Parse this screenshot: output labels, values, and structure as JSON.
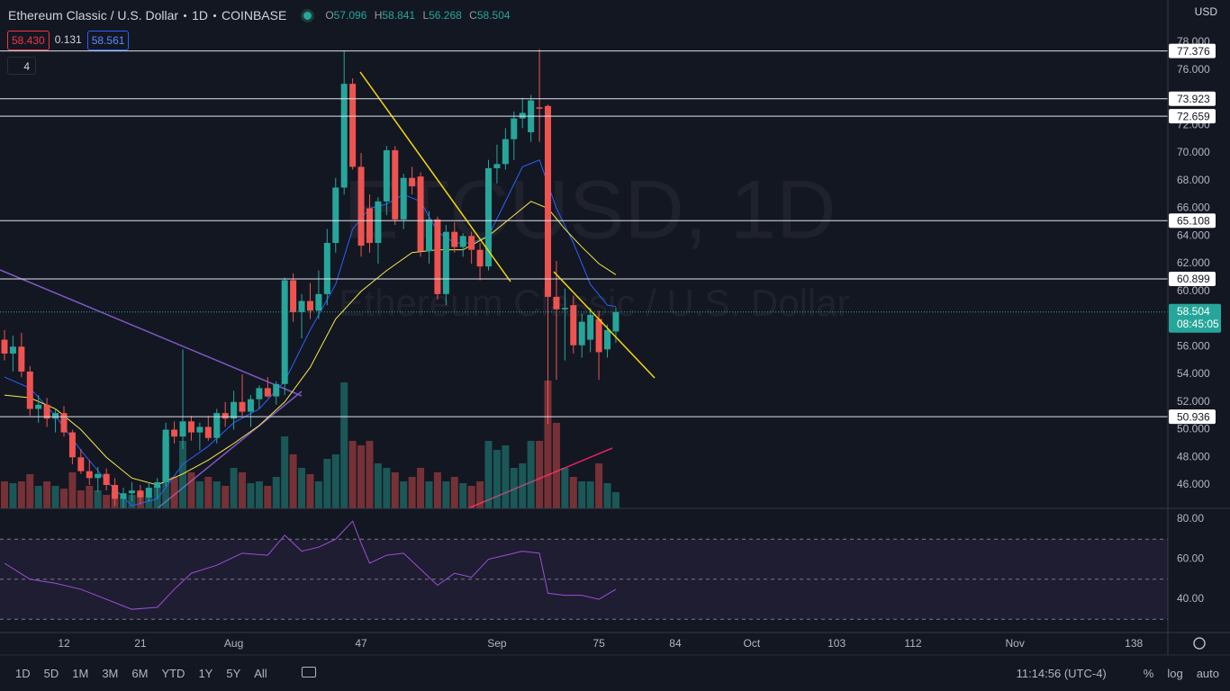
{
  "header": {
    "symbol": "Ethereum Classic / U.S. Dollar",
    "interval": "1D",
    "exchange": "COINBASE",
    "currency": "USD",
    "ohlc_keys": [
      "O",
      "H",
      "L",
      "C"
    ],
    "bid": "58.430",
    "spread": "0.131",
    "ask": "58.561",
    "indicator_count": "4"
  },
  "watermark": {
    "line1": "ETCUSD, 1D",
    "line2": "Ethereum Classic / U.S. Dollar"
  },
  "countdown": "08:45:05",
  "toolbar": {
    "ranges": [
      "1D",
      "5D",
      "1M",
      "3M",
      "6M",
      "YTD",
      "1Y",
      "5Y",
      "All"
    ],
    "clock": "11:14:56 (UTC-4)",
    "options": [
      "%",
      "log",
      "auto"
    ]
  },
  "chart_data": {
    "type": "candlestick",
    "x": [
      5,
      6,
      7,
      8,
      9,
      10,
      11,
      12,
      13,
      14,
      15,
      16,
      17,
      18,
      19,
      20,
      21,
      22,
      23,
      24,
      25,
      26,
      27,
      28,
      29,
      30,
      31,
      32,
      33,
      34,
      35,
      36,
      37,
      38,
      39,
      40,
      41,
      42,
      43,
      44,
      45,
      46,
      47,
      48,
      49,
      50,
      51,
      52,
      53,
      54,
      55,
      56,
      57,
      58,
      59,
      60,
      61,
      62,
      63,
      64,
      65,
      66,
      67,
      68,
      69,
      70,
      71,
      72,
      73,
      74,
      75,
      76,
      77
    ],
    "open": [
      56.5,
      55.5,
      56.0,
      54.2,
      51.5,
      51.8,
      50.8,
      51.2,
      49.8,
      48.0,
      47.0,
      46.5,
      46.8,
      46.0,
      45.0,
      45.4,
      45.6,
      45.1,
      45.8,
      46.2,
      50.0,
      49.5,
      50.6,
      49.8,
      50.2,
      49.4,
      51.2,
      50.8,
      52.0,
      51.3,
      52.2,
      53.0,
      52.4,
      53.3,
      60.8,
      58.5,
      59.3,
      58.6,
      59.8,
      63.5,
      67.5,
      75.0,
      69.0,
      66.0,
      63.5,
      66.5,
      70.2,
      65.2,
      68.2,
      68.3,
      62.9,
      65.2,
      59.8,
      64.3,
      63.2,
      64.0,
      63.0,
      61.8,
      68.9,
      69.2,
      71.0,
      72.5,
      71.5,
      73.3,
      73.4,
      59.6,
      58.7,
      59.0,
      56.1,
      56.5,
      58.0,
      55.8,
      57.096
    ],
    "high": [
      57.2,
      56.8,
      57.0,
      54.6,
      52.5,
      52.3,
      51.5,
      51.7,
      50.0,
      48.6,
      47.8,
      47.3,
      47.2,
      46.5,
      45.8,
      46.2,
      46.0,
      46.2,
      46.5,
      50.5,
      50.6,
      55.8,
      51.0,
      50.5,
      51.0,
      51.5,
      52.0,
      52.8,
      54.0,
      52.5,
      53.2,
      53.8,
      53.5,
      61.0,
      61.3,
      59.8,
      60.6,
      61.5,
      64.5,
      68.2,
      77.4,
      75.4,
      70.0,
      67.0,
      66.8,
      70.5,
      70.5,
      68.5,
      69.0,
      68.6,
      65.8,
      65.4,
      64.8,
      65.0,
      64.2,
      64.3,
      63.5,
      69.5,
      70.6,
      71.8,
      73.0,
      74.0,
      74.2,
      77.5,
      73.5,
      62.2,
      60.2,
      59.7,
      58.4,
      58.8,
      58.6,
      57.6,
      58.841
    ],
    "low": [
      55.0,
      54.2,
      53.8,
      51.0,
      50.5,
      50.2,
      49.8,
      49.5,
      47.5,
      46.8,
      46.0,
      45.5,
      45.6,
      44.5,
      44.3,
      44.8,
      44.6,
      44.8,
      45.0,
      45.9,
      49.0,
      48.6,
      49.2,
      48.5,
      49.2,
      49.0,
      50.2,
      50.0,
      51.0,
      50.2,
      51.5,
      52.3,
      51.8,
      52.5,
      57.8,
      56.6,
      58.0,
      58.0,
      59.0,
      62.8,
      67.0,
      68.8,
      62.5,
      62.8,
      62.0,
      65.5,
      64.8,
      64.5,
      67.0,
      62.5,
      62.0,
      59.4,
      59.0,
      62.8,
      62.5,
      62.0,
      60.8,
      61.5,
      67.8,
      68.8,
      69.5,
      71.8,
      70.8,
      70.8,
      50.4,
      53.6,
      55.0,
      55.5,
      55.2,
      55.6,
      53.6,
      55.2,
      56.268
    ],
    "close": [
      55.5,
      56.0,
      54.2,
      51.5,
      51.8,
      50.8,
      51.2,
      49.8,
      48.0,
      47.0,
      46.5,
      46.8,
      46.0,
      45.0,
      45.4,
      45.6,
      45.1,
      45.8,
      46.2,
      50.0,
      49.5,
      50.6,
      49.8,
      50.2,
      49.4,
      51.2,
      50.8,
      52.0,
      51.3,
      52.2,
      53.0,
      52.4,
      53.3,
      60.8,
      58.5,
      59.3,
      58.6,
      59.8,
      63.5,
      67.5,
      75.0,
      69.0,
      63.3,
      63.5,
      66.5,
      70.2,
      65.2,
      68.2,
      67.6,
      62.9,
      65.2,
      59.8,
      64.3,
      63.2,
      64.0,
      63.0,
      61.8,
      68.9,
      69.2,
      71.0,
      72.5,
      72.9,
      73.8,
      73.2,
      59.6,
      58.7,
      58.8,
      56.1,
      57.8,
      58.3,
      55.6,
      57.2,
      58.504
    ],
    "volume": [
      30,
      28,
      30,
      38,
      25,
      30,
      25,
      22,
      40,
      20,
      25,
      20,
      15,
      18,
      12,
      15,
      18,
      14,
      25,
      80,
      35,
      75,
      40,
      30,
      35,
      30,
      25,
      45,
      40,
      28,
      30,
      25,
      35,
      80,
      60,
      45,
      38,
      30,
      55,
      60,
      140,
      75,
      70,
      75,
      50,
      45,
      40,
      30,
      35,
      45,
      30,
      40,
      30,
      35,
      28,
      25,
      30,
      75,
      65,
      70,
      45,
      50,
      75,
      75,
      142,
      95,
      45,
      35,
      30,
      30,
      50,
      28,
      18
    ],
    "series": [
      {
        "color": "#2962ff",
        "x": [
          5,
          8,
          11,
          14,
          17,
          20,
          23,
          26,
          29,
          32,
          35,
          38,
          41,
          44,
          46,
          48,
          50,
          52,
          54,
          56,
          58,
          60,
          62,
          64,
          66,
          68,
          70,
          72,
          74,
          76,
          77
        ],
        "values": [
          53.8,
          53.0,
          51.0,
          48.5,
          46.3,
          44.5,
          45.0,
          47.5,
          48.8,
          50.5,
          51.5,
          53.5,
          57.2,
          60.5,
          64.5,
          66.0,
          66.3,
          67.0,
          66.5,
          64.3,
          63.5,
          63.5,
          64.0,
          66.5,
          69.0,
          69.5,
          66.0,
          63.5,
          60.5,
          59.0,
          58.9
        ]
      },
      {
        "color": "#f7e94a",
        "x": [
          5,
          8,
          11,
          14,
          17,
          20,
          23,
          26,
          29,
          32,
          35,
          38,
          41,
          44,
          47,
          50,
          53,
          56,
          59,
          62,
          65,
          67,
          69,
          71,
          73,
          75,
          77
        ],
        "values": [
          52.5,
          52.3,
          51.5,
          50.0,
          48.0,
          46.5,
          46.0,
          46.8,
          47.8,
          49.0,
          50.3,
          52.0,
          54.5,
          58.0,
          60.0,
          61.5,
          62.8,
          63.0,
          63.0,
          64.0,
          65.5,
          66.5,
          66.0,
          64.5,
          63.2,
          62.0,
          61.2
        ]
      }
    ],
    "levels": [
      77.376,
      73.923,
      72.659,
      65.108,
      60.899,
      50.936
    ],
    "xlim": [
      4.471,
      142.01
    ],
    "xticks": [
      12,
      21,
      {
        "value": 32,
        "label": "Aug"
      },
      47,
      {
        "value": 63,
        "label": "Sep"
      },
      75,
      84,
      {
        "value": 93,
        "label": "Oct"
      },
      103,
      112,
      {
        "value": 124,
        "label": "Nov"
      },
      138
    ],
    "ylim": [
      44.31,
      81.06
    ],
    "yticks": [
      {
        "value": 78,
        "label": "78.000"
      },
      {
        "value": 76,
        "label": "76.000"
      },
      {
        "value": 72,
        "label": "72.000"
      },
      {
        "value": 70,
        "label": "70.000"
      },
      {
        "value": 68,
        "label": "68.000"
      },
      {
        "value": 66,
        "label": "66.000"
      },
      {
        "value": 64,
        "label": "64.000"
      },
      {
        "value": 62,
        "label": "62.000"
      },
      {
        "value": 60,
        "label": "60.000"
      },
      {
        "value": 56,
        "label": "56.000"
      },
      {
        "value": 54,
        "label": "54.000"
      },
      {
        "value": 52,
        "label": "52.000"
      },
      {
        "value": 50,
        "label": "50.000"
      },
      {
        "value": 48,
        "label": "48.000"
      },
      {
        "value": 46,
        "label": "46.000"
      }
    ],
    "rsi": {
      "color": "#9c4fd6",
      "ylim": [
        23.4,
        85.4
      ],
      "bands": [
        70,
        50,
        30
      ],
      "yticks": [
        {
          "value": 80,
          "label": "80.00"
        },
        {
          "value": 60,
          "label": "60.00"
        },
        {
          "value": 40,
          "label": "40.00"
        }
      ],
      "x": [
        5,
        8,
        11,
        14,
        17,
        20,
        23,
        25,
        27,
        30,
        33,
        36,
        38,
        40,
        42,
        44,
        46,
        47,
        48,
        50,
        52,
        54,
        56,
        58,
        60,
        62,
        64,
        66,
        68,
        69,
        71,
        73,
        75,
        77
      ],
      "values": [
        58,
        50,
        48,
        45,
        40,
        35,
        36,
        45,
        53,
        57,
        63,
        62,
        72,
        64,
        66,
        70,
        79,
        68,
        58,
        62,
        63,
        55,
        47,
        53,
        51,
        60,
        62,
        64,
        63,
        43,
        42,
        42,
        40,
        45
      ]
    }
  }
}
